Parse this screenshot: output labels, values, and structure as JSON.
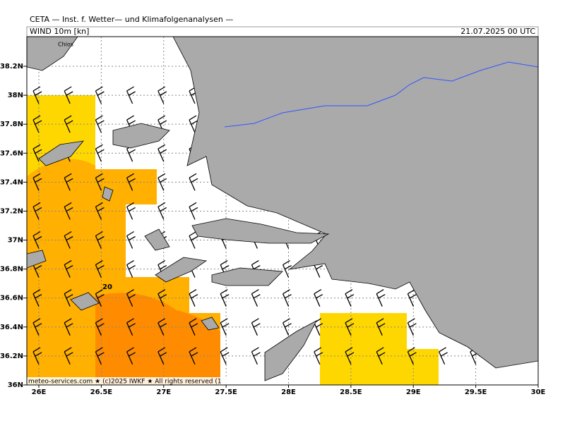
{
  "header": {
    "title": "CETA — Inst. f. Wetter— und Klimafolgenanalysen —",
    "field": "WIND 10m [kn]",
    "valid_time": "21.07.2025 00 UTC"
  },
  "map": {
    "lat_labels": [
      "38.2N",
      "38N",
      "37.8N",
      "37.6N",
      "37.4N",
      "37.2N",
      "37N",
      "36.8N",
      "36.6N",
      "36.4N",
      "36.2N",
      "36N"
    ],
    "lon_labels": [
      "26E",
      "26.5E",
      "27E",
      "27.5E",
      "28E",
      "28.5E",
      "29E",
      "29.5E",
      "30E"
    ],
    "place_label": "Chios",
    "contour_label": "20",
    "credit": "meteo-services.com ★ (c)2025 IWKF ★ All rights reserved (1"
  }
}
